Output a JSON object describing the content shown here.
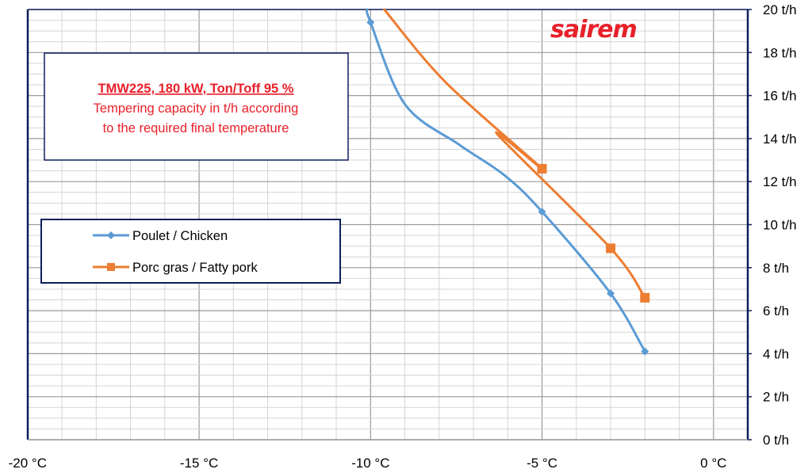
{
  "logo": {
    "text": "sairem"
  },
  "note": {
    "title": "TMW225,  180 kW,  Ton/Toff 95 %",
    "line1": "Tempering capacity in t/h according",
    "line2": "to the required final temperature"
  },
  "colors": {
    "chicken": "#5b9bd5",
    "pork": "#ed7d31",
    "frame": "#0d1f5c",
    "accent": "#e8202a"
  },
  "chart_data": {
    "type": "line",
    "xlabel": "",
    "ylabel": "",
    "xlim": [
      -20,
      1
    ],
    "ylim": [
      0,
      20
    ],
    "x_ticks": [
      -20,
      -15,
      -10,
      -5,
      0
    ],
    "x_tick_labels": [
      "-20 °C",
      "-15 °C",
      "-10 °C",
      "-5 °C",
      "0 °C"
    ],
    "y_ticks": [
      0,
      2,
      4,
      6,
      8,
      10,
      12,
      14,
      16,
      18,
      20
    ],
    "y_tick_labels": [
      "0 t/h",
      "2 t/h",
      "4 t/h",
      "6 t/h",
      "8 t/h",
      "10 t/h",
      "12 t/h",
      "14 t/h",
      "16 t/h",
      "18 t/h",
      "20 t/h"
    ],
    "grid": true,
    "legend_position": "middle-left",
    "series": [
      {
        "name": "Poulet / Chicken",
        "color": "#5b9bd5",
        "marker": "diamond",
        "x": [
          -10,
          -5,
          -3,
          -2
        ],
        "y": [
          19.4,
          10.6,
          6.8,
          4.1
        ]
      },
      {
        "name": "Porc gras / Fatty pork",
        "color": "#ed7d31",
        "marker": "square",
        "x": [
          -5,
          -3,
          -2
        ],
        "y": [
          12.6,
          8.9,
          6.6
        ]
      }
    ]
  }
}
